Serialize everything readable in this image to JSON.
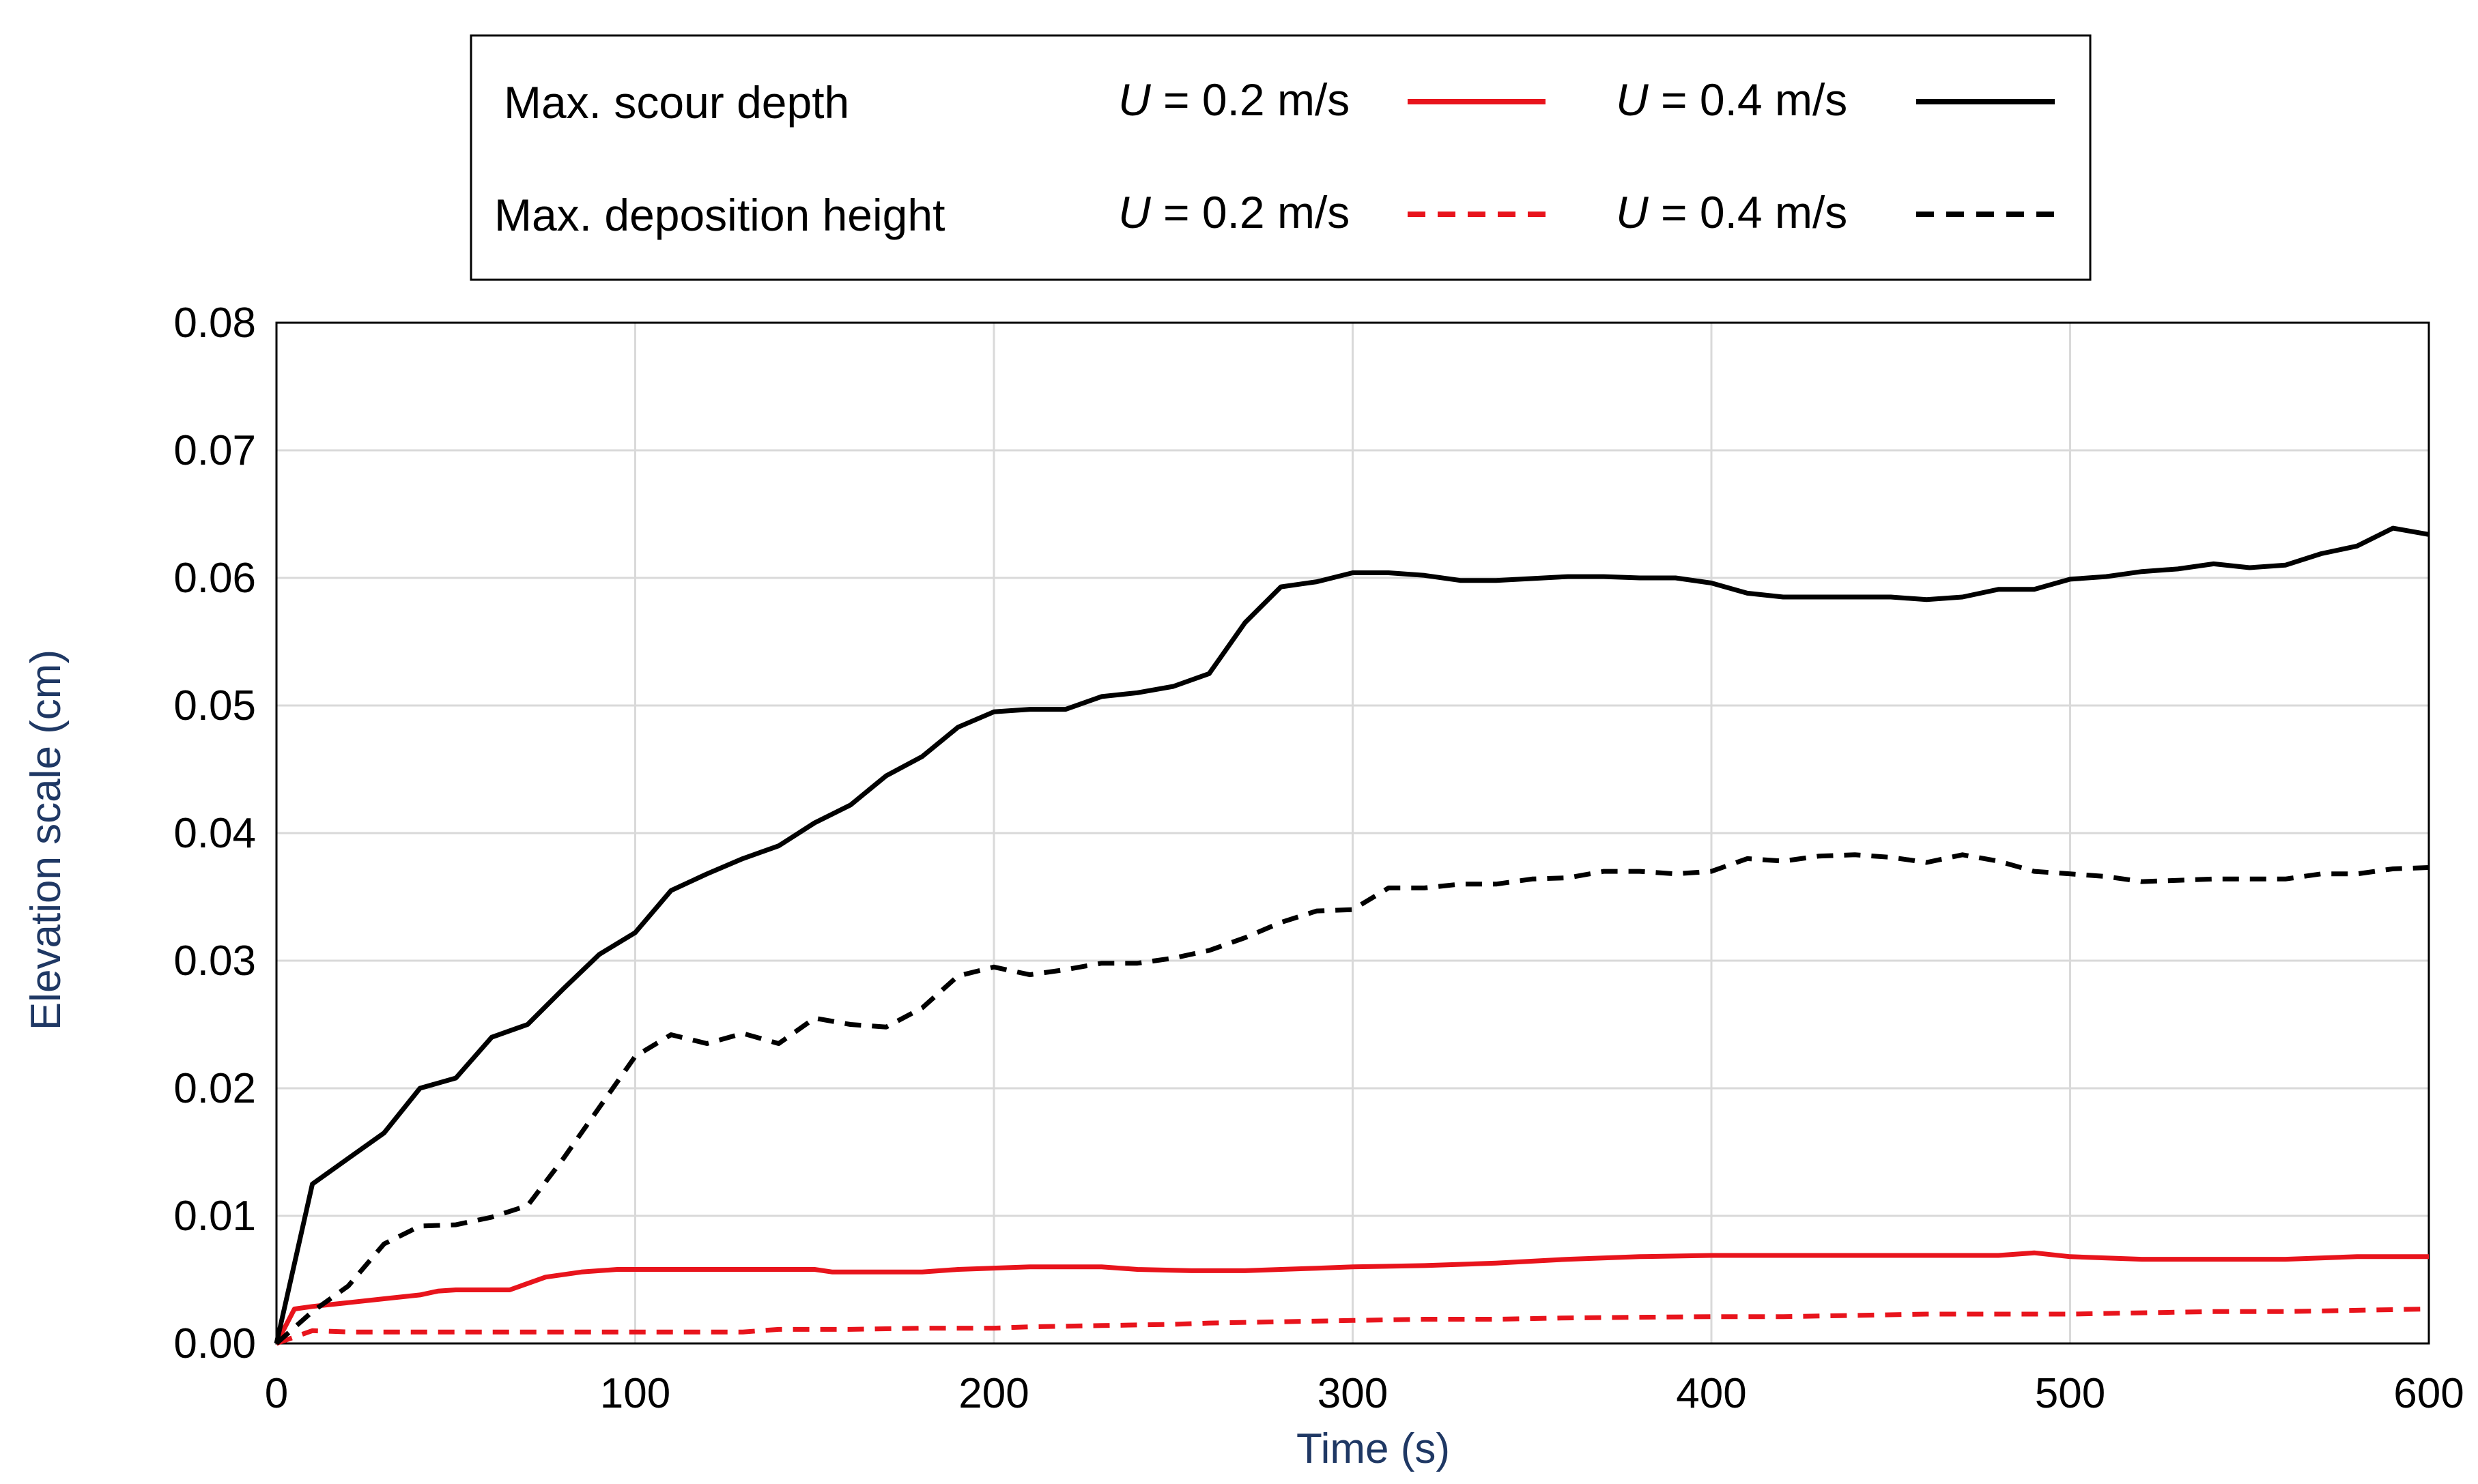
{
  "chart_data": {
    "type": "line",
    "title": "",
    "xlabel": "Time (s)",
    "ylabel": "Elevation scale (cm)",
    "xlim": [
      0,
      600
    ],
    "ylim": [
      0,
      0.08
    ],
    "x_ticks": [
      0,
      100,
      200,
      300,
      400,
      500,
      600
    ],
    "x_tick_labels": [
      "0",
      "100",
      "200",
      "300",
      "400",
      "500",
      "600"
    ],
    "y_ticks": [
      0,
      0.01,
      0.02,
      0.03,
      0.04,
      0.05,
      0.06,
      0.07,
      0.08
    ],
    "y_tick_labels": [
      "0.00",
      "0.01",
      "0.02",
      "0.03",
      "0.04",
      "0.05",
      "0.06",
      "0.07",
      "0.08"
    ],
    "grid": true,
    "legend": {
      "position": "top-center",
      "rows": [
        {
          "label": "Max. scour depth",
          "entries": [
            {
              "u_symbol": "U",
              "u_value": " = 0.2 m/s",
              "series_index": 0
            },
            {
              "u_symbol": "U",
              "u_value": " = 0.4 m/s",
              "series_index": 1
            }
          ]
        },
        {
          "label": "Max. deposition height",
          "entries": [
            {
              "u_symbol": "U",
              "u_value": " = 0.2 m/s",
              "series_index": 2
            },
            {
              "u_symbol": "U",
              "u_value": " = 0.4 m/s",
              "series_index": 3
            }
          ]
        }
      ]
    },
    "series": [
      {
        "name": "Max. scour depth, U = 0.2 m/s",
        "color": "#e8141c",
        "dash": "solid",
        "points": [
          [
            0,
            0
          ],
          [
            5,
            0.0027
          ],
          [
            10,
            0.0029
          ],
          [
            20,
            0.0032
          ],
          [
            30,
            0.0035
          ],
          [
            40,
            0.0038
          ],
          [
            45,
            0.0041
          ],
          [
            50,
            0.0042
          ],
          [
            65,
            0.0042
          ],
          [
            75,
            0.0052
          ],
          [
            85,
            0.0056
          ],
          [
            95,
            0.0058
          ],
          [
            100,
            0.0058
          ],
          [
            150,
            0.0058
          ],
          [
            155,
            0.0056
          ],
          [
            180,
            0.0056
          ],
          [
            190,
            0.0058
          ],
          [
            210,
            0.006
          ],
          [
            230,
            0.006
          ],
          [
            240,
            0.0058
          ],
          [
            255,
            0.0057
          ],
          [
            270,
            0.0057
          ],
          [
            280,
            0.0058
          ],
          [
            290,
            0.0059
          ],
          [
            300,
            0.006
          ],
          [
            320,
            0.0061
          ],
          [
            340,
            0.0063
          ],
          [
            360,
            0.0066
          ],
          [
            380,
            0.0068
          ],
          [
            400,
            0.0069
          ],
          [
            480,
            0.0069
          ],
          [
            490,
            0.0071
          ],
          [
            500,
            0.0068
          ],
          [
            520,
            0.0066
          ],
          [
            560,
            0.0066
          ],
          [
            580,
            0.0068
          ],
          [
            600,
            0.0068
          ]
        ]
      },
      {
        "name": "Max. scour depth, U = 0.4 m/s",
        "color": "#000000",
        "dash": "solid",
        "points": [
          [
            0,
            0
          ],
          [
            10,
            0.0125
          ],
          [
            20,
            0.0145
          ],
          [
            30,
            0.0165
          ],
          [
            40,
            0.02
          ],
          [
            50,
            0.0208
          ],
          [
            60,
            0.024
          ],
          [
            70,
            0.025
          ],
          [
            80,
            0.0278
          ],
          [
            90,
            0.0305
          ],
          [
            100,
            0.0322
          ],
          [
            110,
            0.0355
          ],
          [
            120,
            0.0368
          ],
          [
            130,
            0.038
          ],
          [
            140,
            0.039
          ],
          [
            150,
            0.0408
          ],
          [
            160,
            0.0422
          ],
          [
            170,
            0.0445
          ],
          [
            180,
            0.046
          ],
          [
            190,
            0.0483
          ],
          [
            200,
            0.0495
          ],
          [
            210,
            0.0497
          ],
          [
            220,
            0.0497
          ],
          [
            230,
            0.0507
          ],
          [
            240,
            0.051
          ],
          [
            250,
            0.0515
          ],
          [
            260,
            0.0525
          ],
          [
            270,
            0.0565
          ],
          [
            280,
            0.0593
          ],
          [
            290,
            0.0597
          ],
          [
            300,
            0.0604
          ],
          [
            310,
            0.0604
          ],
          [
            320,
            0.0602
          ],
          [
            330,
            0.0598
          ],
          [
            340,
            0.0598
          ],
          [
            360,
            0.0601
          ],
          [
            370,
            0.0601
          ],
          [
            380,
            0.06
          ],
          [
            390,
            0.06
          ],
          [
            400,
            0.0596
          ],
          [
            410,
            0.0588
          ],
          [
            420,
            0.0585
          ],
          [
            450,
            0.0585
          ],
          [
            460,
            0.0583
          ],
          [
            470,
            0.0585
          ],
          [
            480,
            0.0591
          ],
          [
            490,
            0.0591
          ],
          [
            500,
            0.0599
          ],
          [
            510,
            0.0601
          ],
          [
            520,
            0.0605
          ],
          [
            530,
            0.0607
          ],
          [
            540,
            0.0611
          ],
          [
            550,
            0.0608
          ],
          [
            560,
            0.061
          ],
          [
            570,
            0.0619
          ],
          [
            580,
            0.0625
          ],
          [
            590,
            0.0639
          ],
          [
            600,
            0.0634
          ]
        ]
      },
      {
        "name": "Max. deposition height, U = 0.2 m/s",
        "color": "#e8141c",
        "dash": "dashed",
        "points": [
          [
            0,
            0
          ],
          [
            10,
            0.001
          ],
          [
            20,
            0.0009
          ],
          [
            30,
            0.0009
          ],
          [
            60,
            0.0009
          ],
          [
            100,
            0.0009
          ],
          [
            130,
            0.0009
          ],
          [
            140,
            0.0011
          ],
          [
            160,
            0.0011
          ],
          [
            180,
            0.0012
          ],
          [
            200,
            0.0012
          ],
          [
            210,
            0.0013
          ],
          [
            230,
            0.0014
          ],
          [
            250,
            0.0015
          ],
          [
            260,
            0.0016
          ],
          [
            280,
            0.0017
          ],
          [
            300,
            0.0018
          ],
          [
            320,
            0.0019
          ],
          [
            340,
            0.0019
          ],
          [
            360,
            0.002
          ],
          [
            400,
            0.0021
          ],
          [
            420,
            0.0021
          ],
          [
            440,
            0.0022
          ],
          [
            460,
            0.0023
          ],
          [
            480,
            0.0023
          ],
          [
            500,
            0.0023
          ],
          [
            520,
            0.0024
          ],
          [
            540,
            0.0025
          ],
          [
            560,
            0.0025
          ],
          [
            580,
            0.0026
          ],
          [
            600,
            0.0027
          ]
        ]
      },
      {
        "name": "Max. deposition height, U = 0.4 m/s",
        "color": "#000000",
        "dash": "dashed",
        "points": [
          [
            0,
            0
          ],
          [
            10,
            0.0025
          ],
          [
            20,
            0.0045
          ],
          [
            30,
            0.0078
          ],
          [
            40,
            0.0092
          ],
          [
            50,
            0.0093
          ],
          [
            60,
            0.0099
          ],
          [
            70,
            0.0108
          ],
          [
            80,
            0.0145
          ],
          [
            90,
            0.0185
          ],
          [
            100,
            0.0225
          ],
          [
            110,
            0.0242
          ],
          [
            120,
            0.0235
          ],
          [
            130,
            0.0243
          ],
          [
            140,
            0.0235
          ],
          [
            150,
            0.0255
          ],
          [
            160,
            0.025
          ],
          [
            170,
            0.0248
          ],
          [
            180,
            0.0263
          ],
          [
            190,
            0.0288
          ],
          [
            200,
            0.0295
          ],
          [
            210,
            0.0289
          ],
          [
            220,
            0.0293
          ],
          [
            230,
            0.0298
          ],
          [
            240,
            0.0298
          ],
          [
            250,
            0.0302
          ],
          [
            260,
            0.0308
          ],
          [
            270,
            0.0318
          ],
          [
            280,
            0.033
          ],
          [
            290,
            0.0339
          ],
          [
            300,
            0.034
          ],
          [
            310,
            0.0357
          ],
          [
            320,
            0.0357
          ],
          [
            330,
            0.036
          ],
          [
            340,
            0.036
          ],
          [
            350,
            0.0364
          ],
          [
            360,
            0.0365
          ],
          [
            370,
            0.037
          ],
          [
            380,
            0.037
          ],
          [
            390,
            0.0368
          ],
          [
            400,
            0.037
          ],
          [
            410,
            0.038
          ],
          [
            420,
            0.0378
          ],
          [
            430,
            0.0382
          ],
          [
            440,
            0.0383
          ],
          [
            450,
            0.0381
          ],
          [
            460,
            0.0377
          ],
          [
            470,
            0.0383
          ],
          [
            480,
            0.0378
          ],
          [
            490,
            0.037
          ],
          [
            500,
            0.0368
          ],
          [
            510,
            0.0366
          ],
          [
            520,
            0.0362
          ],
          [
            530,
            0.0363
          ],
          [
            540,
            0.0364
          ],
          [
            550,
            0.0364
          ],
          [
            560,
            0.0364
          ],
          [
            570,
            0.0368
          ],
          [
            580,
            0.0368
          ],
          [
            590,
            0.0372
          ],
          [
            600,
            0.0373
          ]
        ]
      }
    ]
  }
}
